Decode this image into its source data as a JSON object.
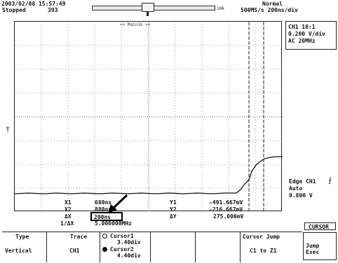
{
  "header": {
    "datetime": "2003/02/08 15:57:49",
    "status": "Stopped",
    "count": "393",
    "memory_length": "10k",
    "mode": "Normal",
    "rate": "500MS/s 200ns/div"
  },
  "plot": {
    "title": "<< Main1k >>",
    "trigger_level_mark": "†"
  },
  "channel": {
    "scale": "CH1 10:1",
    "volts_div": "0.200 V/div",
    "coupling": "AC   20MHz"
  },
  "trigger": {
    "source": "Edge CH1",
    "edge_symbol": "⨍",
    "mode": "Auto",
    "level": "0.800 V"
  },
  "readout": {
    "x1_label": "X1",
    "x1_value": "680ns",
    "x2_label": "X2",
    "x2_value": "880ns",
    "dx_label": "ΔX",
    "dx_value": "200ns",
    "inv_dx_label": "1/ΔX",
    "inv_dx_value": "5.000000MHz",
    "y1_label": "Y1",
    "y1_value": "-491.667mV",
    "y2_label": "Y2",
    "y2_value": "-216.667mV",
    "dy_label": "ΔY",
    "dy_value": "275.000mV"
  },
  "softkeys": {
    "type_label": "Type",
    "type_value": "Vertical",
    "trace_label": "Trace",
    "trace_value": "CH1",
    "cursor1_label": "Cursor1",
    "cursor1_value": "3.40div",
    "cursor2_label": "Cursor2",
    "cursor2_value": "4.40div",
    "jump_label": "Cursor Jump",
    "jump_value": "C1 to Z1",
    "menu_label": "CURSOR",
    "jump_exec_label": "Jump Exec"
  }
}
